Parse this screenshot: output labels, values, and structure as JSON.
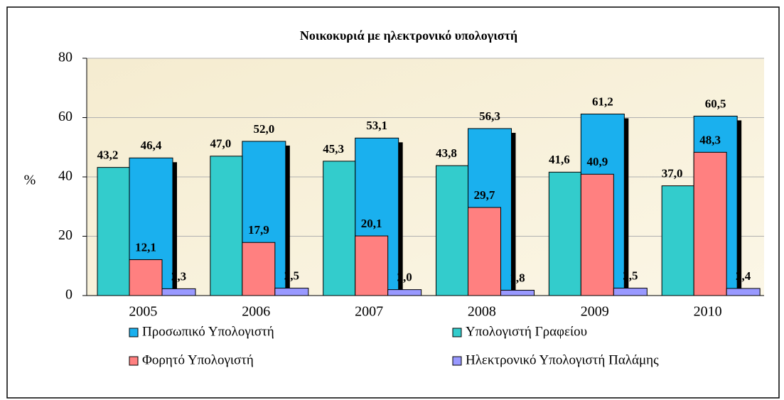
{
  "chart_data": {
    "type": "bar",
    "title": "Νοικοκυριά με ηλεκτρονικό  υπολογιστή",
    "y_label": "%",
    "categories": [
      "2005",
      "2006",
      "2007",
      "2008",
      "2009",
      "2010"
    ],
    "series": [
      {
        "name": "Προσωπικό Υπολογιστή",
        "color": "#1ab0ee",
        "values": [
          46.4,
          52.0,
          53.1,
          56.3,
          61.2,
          60.5
        ],
        "value_labels": [
          "46,4",
          "52,0",
          "53,1",
          "56,3",
          "61,2",
          "60,5"
        ]
      },
      {
        "name": "Υπολογιστή Γραφείου",
        "color": "#33cccc",
        "values": [
          43.2,
          47.0,
          45.3,
          43.8,
          41.6,
          37.0
        ],
        "value_labels": [
          "43,2",
          "47,0",
          "45,3",
          "43,8",
          "41,6",
          "37,0"
        ]
      },
      {
        "name": "Φορητό Υπολογιστή",
        "color": "#ff8080",
        "values": [
          12.1,
          17.9,
          20.1,
          29.7,
          40.9,
          48.3
        ],
        "value_labels": [
          "12,1",
          "17,9",
          "20,1",
          "29,7",
          "40,9",
          "48,3"
        ]
      },
      {
        "name": "Ηλεκτρονικό Υπολογιστή Παλάμης",
        "color": "#9999ff",
        "values": [
          2.3,
          2.5,
          2.0,
          1.8,
          2.5,
          2.4
        ],
        "value_labels": [
          "2,3",
          "2,5",
          "2,0",
          "1,8",
          "2,5",
          "2,4"
        ]
      }
    ],
    "ylim": [
      0,
      80
    ],
    "yticks": [
      0,
      20,
      40,
      60,
      80
    ],
    "grid": true,
    "legend": "bottom"
  }
}
